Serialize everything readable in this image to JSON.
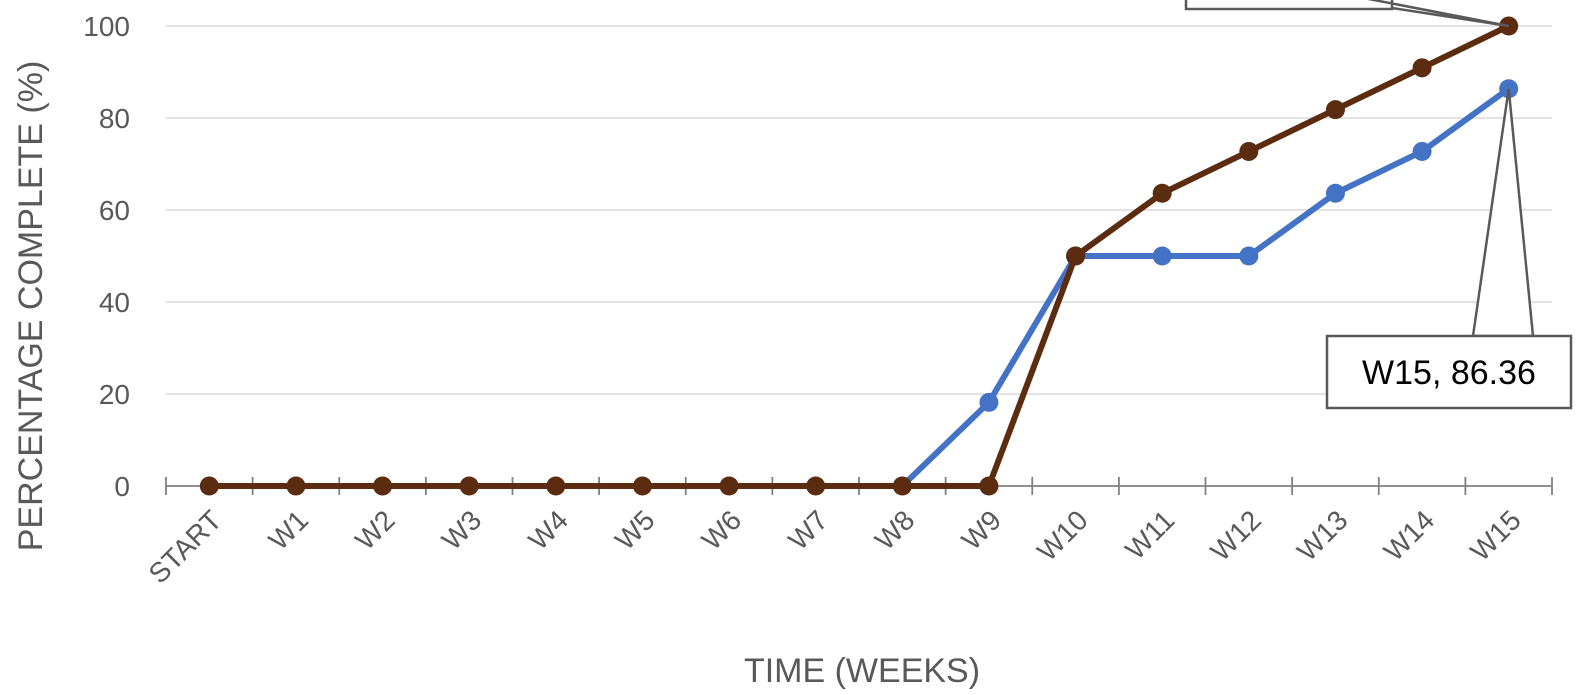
{
  "chart_data": {
    "type": "line",
    "title": "",
    "xlabel": "TIME (WEEKS)",
    "ylabel": "PERCENTAGE COMPLETE (%)",
    "ylim": [
      0,
      100
    ],
    "yticks": [
      0,
      20,
      40,
      60,
      80,
      100
    ],
    "grid": true,
    "categories": [
      "START",
      "W1",
      "W2",
      "W3",
      "W4",
      "W5",
      "W6",
      "W7",
      "W8",
      "W9",
      "W10",
      "W11",
      "W12",
      "W13",
      "W14",
      "W15"
    ],
    "series": [
      {
        "color": "#4472c4",
        "values": [
          null,
          null,
          null,
          null,
          null,
          null,
          null,
          null,
          0,
          18.18,
          50,
          50,
          50,
          63.64,
          72.73,
          86.36
        ]
      },
      {
        "color": "#5b2c0f",
        "values": [
          0,
          0,
          0,
          0,
          0,
          0,
          0,
          0,
          0,
          0,
          50,
          63.64,
          72.73,
          81.82,
          90.91,
          100
        ]
      }
    ],
    "annotations": [
      {
        "text": "W15, 86.36",
        "category": "W15",
        "value": 86.36
      }
    ]
  }
}
